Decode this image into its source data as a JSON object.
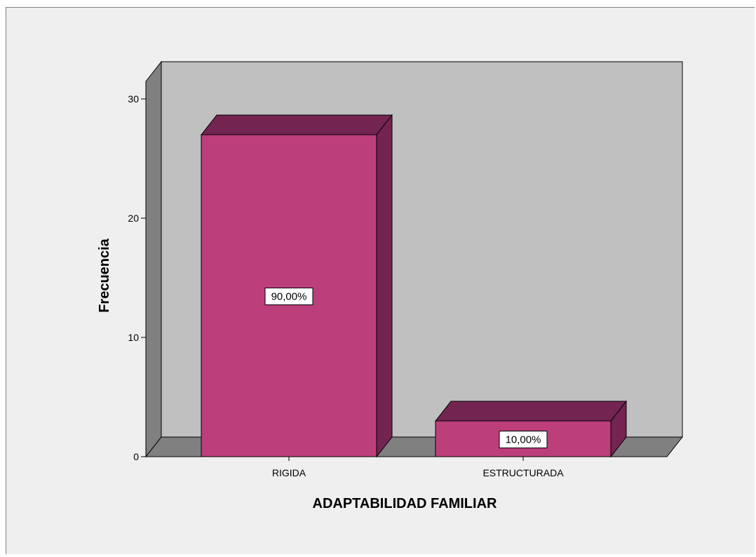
{
  "chart_data": {
    "type": "bar",
    "style": "3d",
    "title": "",
    "xlabel": "ADAPTABILIDAD FAMILIAR",
    "ylabel": "Frecuencia",
    "categories": [
      "RIGIDA",
      "ESTRUCTURADA"
    ],
    "values": [
      27,
      3
    ],
    "data_labels": [
      "90,00%",
      "10,00%"
    ],
    "ylim": [
      0,
      30
    ],
    "yticks": [
      0,
      10,
      20,
      30
    ],
    "grid": false,
    "legend": "none",
    "colors": {
      "background": "#efefef",
      "wall_back": "#c0c0c0",
      "wall_side": "#808080",
      "floor": "#808080",
      "bar_front": "#bc3f7c",
      "bar_top": "#732451",
      "bar_side": "#732451"
    }
  }
}
